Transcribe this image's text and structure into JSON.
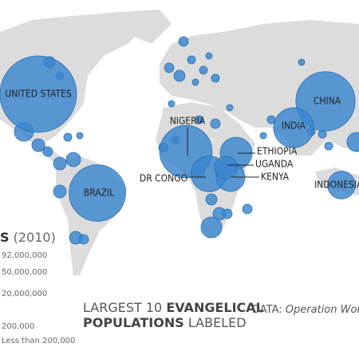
{
  "legend": {
    "title_bold": "S",
    "title_rest": "(2010)",
    "entries": [
      "92,000,000",
      "50,000,000",
      "20,000,000",
      "200,000",
      "Less than 200,000"
    ]
  },
  "caption": {
    "line1": "LARGEST 10",
    "line1_bold": "EVANGELICAL",
    "line2_bold": "POPULATIONS",
    "line2": "LABELED"
  },
  "source": {
    "label": "DATA:",
    "name": "Operation World"
  },
  "countries": [
    {
      "name": "UNITED STATES",
      "value": 92000000
    },
    {
      "name": "CHINA",
      "value": 55000000
    },
    {
      "name": "BRAZIL",
      "value": 50000000
    },
    {
      "name": "NIGERIA",
      "value": 43000000
    },
    {
      "name": "INDIA",
      "value": 25000000
    },
    {
      "name": "DR CONGO",
      "value": 20000000
    },
    {
      "name": "ETHIOPIA",
      "value": 16000000
    },
    {
      "name": "KENYA",
      "value": 13000000
    },
    {
      "name": "UGANDA",
      "value": 8000000
    },
    {
      "name": "INDONESIA",
      "value": 12000000
    }
  ]
}
